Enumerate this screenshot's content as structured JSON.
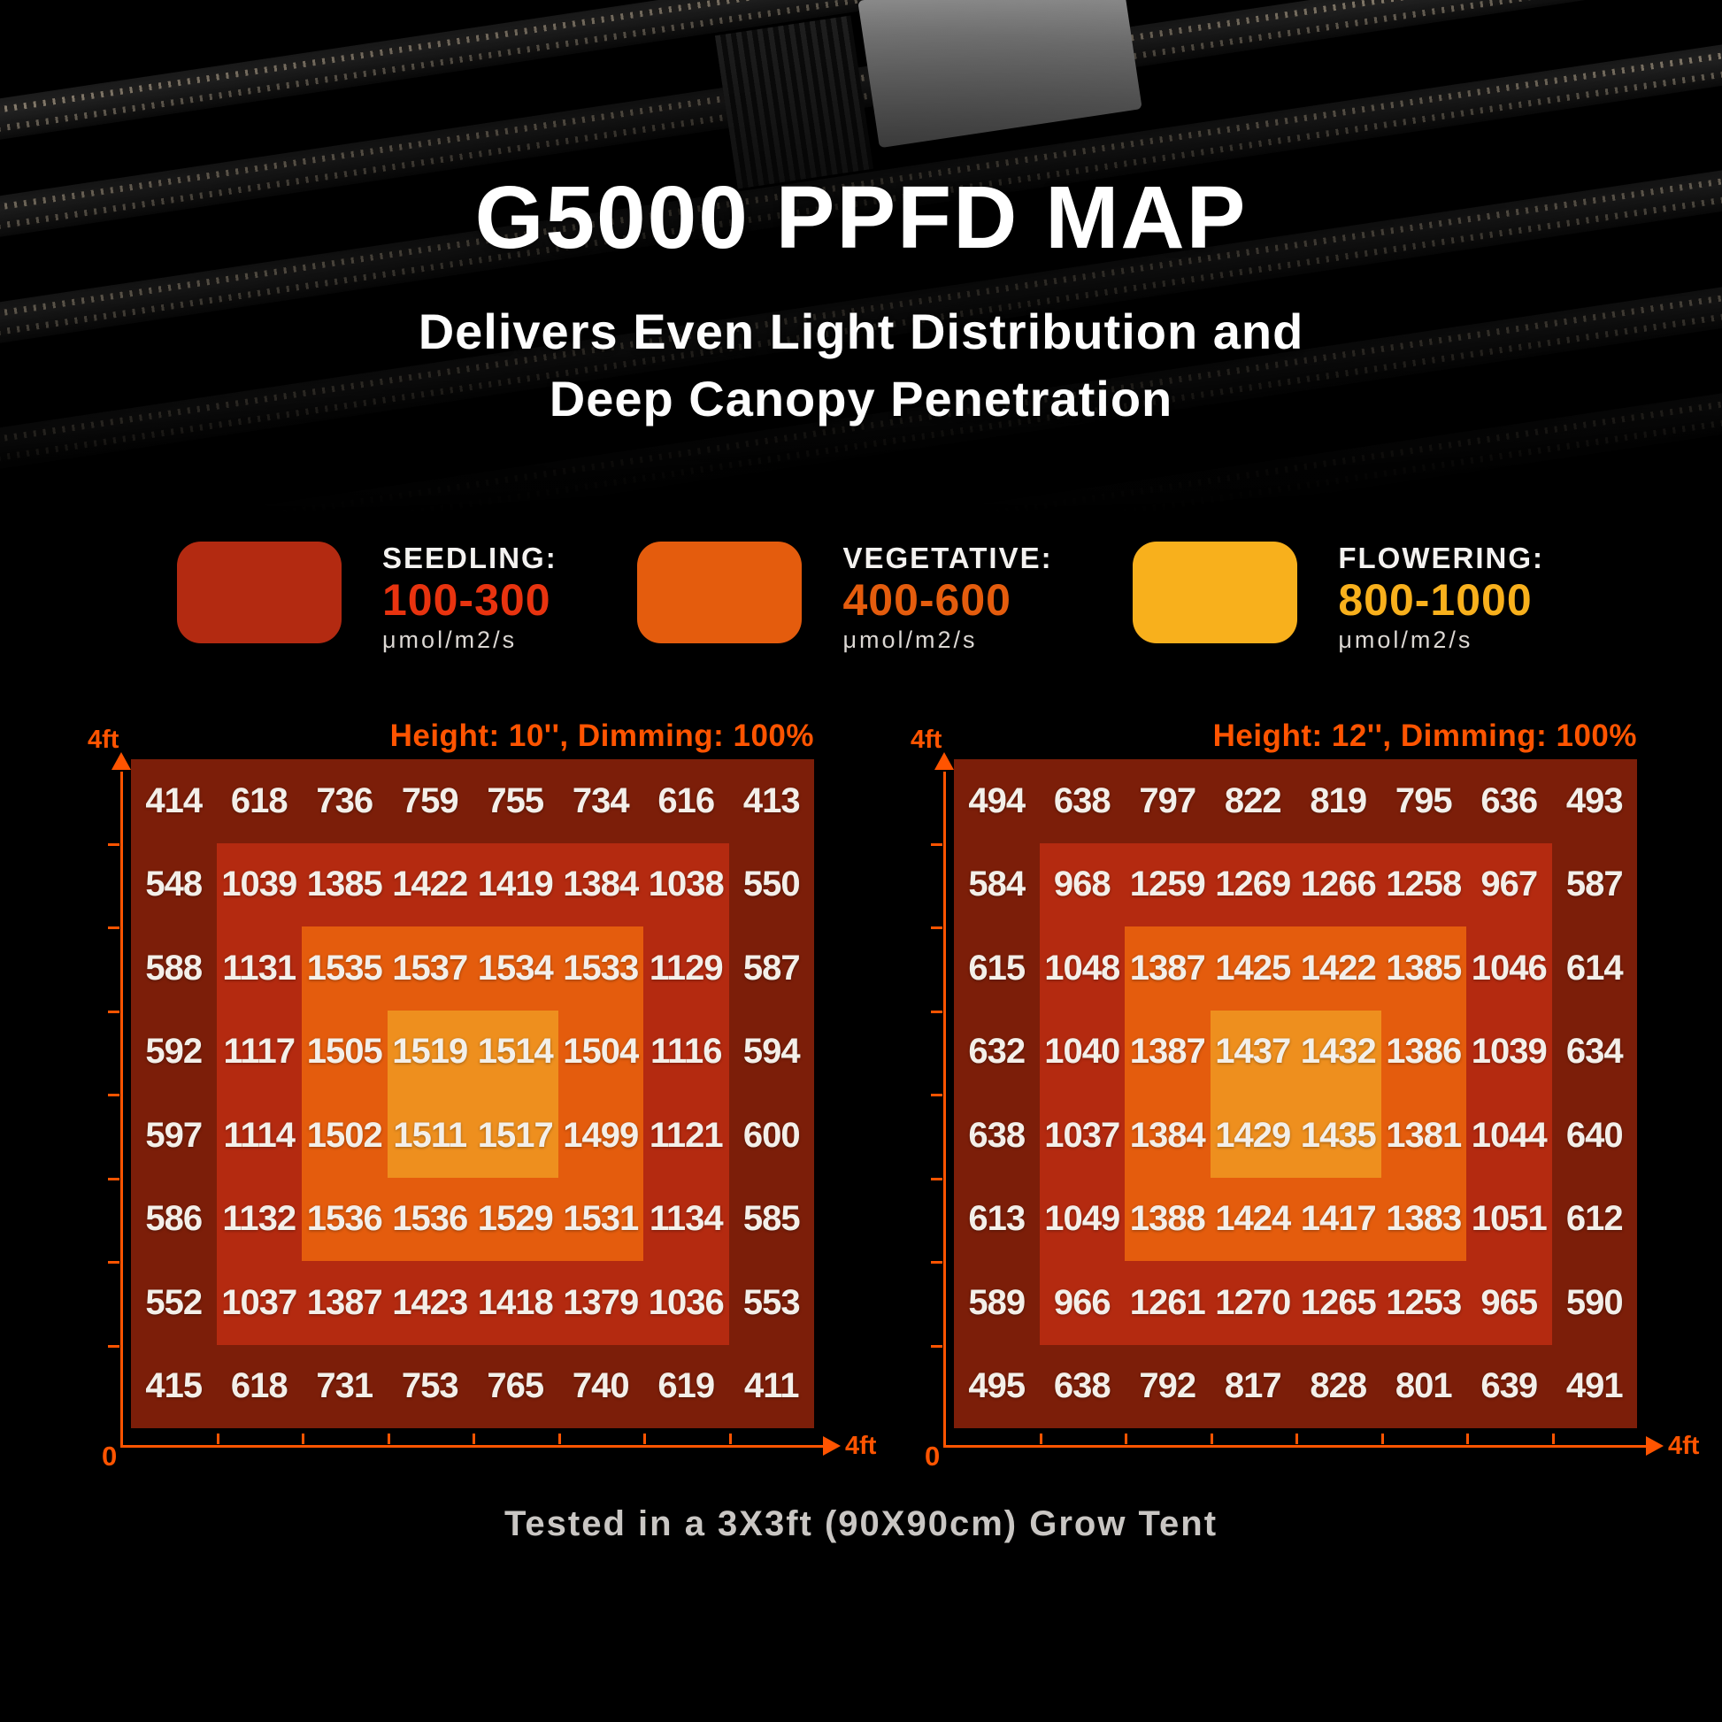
{
  "page": {
    "title": "G5000 PPFD MAP",
    "subtitle_line1": "Delivers Even Light Distribution and",
    "subtitle_line2": "Deep Canopy Penetration",
    "footer_note": "Tested in a 3X3ft (90X90cm) Grow Tent"
  },
  "legend": {
    "items": [
      {
        "label": "SEEDLING:",
        "range": "100-300",
        "unit": "μmol/m2/s",
        "swatch_color": "#b32a11",
        "range_color": "#e8330f"
      },
      {
        "label": "VEGETATIVE:",
        "range": "400-600",
        "unit": "μmol/m2/s",
        "swatch_color": "#e45c0d",
        "range_color": "#e45c0d"
      },
      {
        "label": "FLOWERING:",
        "range": "800-1000",
        "unit": "μmol/m2/s",
        "swatch_color": "#f8b01c",
        "range_color": "#f8b01c"
      }
    ]
  },
  "zones": {
    "outer": "#7c1e09",
    "mid": "#b42a10",
    "inner": "#e45c0d",
    "center": "#ee8f1e"
  },
  "colors": {
    "axis": "#ff5400",
    "header_accent": "#ff5400",
    "value_text": "#f3efe9",
    "footer_text": "#c9c6c3"
  },
  "chart_data": [
    {
      "type": "heatmap",
      "title": "Height: 10'', Dimming: 100%",
      "unit": "μmol/m2/s",
      "grid_size": [
        8,
        8
      ],
      "x_axis": {
        "origin_label": "0",
        "end_label": "4ft",
        "range_ft": [
          0,
          4
        ]
      },
      "y_axis": {
        "end_label": "4ft",
        "range_ft": [
          0,
          4
        ]
      },
      "zone_legend": {
        "outer_values": "~410-760",
        "mid_values": "~1036-1134",
        "inner_values": "~1379-1537",
        "center_values": "~1499-1519"
      },
      "values": [
        [
          414,
          618,
          736,
          759,
          755,
          734,
          616,
          413
        ],
        [
          548,
          1039,
          1385,
          1422,
          1419,
          1384,
          1038,
          550
        ],
        [
          588,
          1131,
          1535,
          1537,
          1534,
          1533,
          1129,
          587
        ],
        [
          592,
          1117,
          1505,
          1519,
          1514,
          1504,
          1116,
          594
        ],
        [
          597,
          1114,
          1502,
          1511,
          1517,
          1499,
          1121,
          600
        ],
        [
          586,
          1132,
          1536,
          1536,
          1529,
          1531,
          1134,
          585
        ],
        [
          552,
          1037,
          1387,
          1423,
          1418,
          1379,
          1036,
          553
        ],
        [
          415,
          618,
          731,
          753,
          765,
          740,
          619,
          411
        ]
      ]
    },
    {
      "type": "heatmap",
      "title": "Height: 12'', Dimming: 100%",
      "unit": "μmol/m2/s",
      "grid_size": [
        8,
        8
      ],
      "x_axis": {
        "origin_label": "0",
        "end_label": "4ft",
        "range_ft": [
          0,
          4
        ]
      },
      "y_axis": {
        "end_label": "4ft",
        "range_ft": [
          0,
          4
        ]
      },
      "zone_legend": {
        "outer_values": "~491-828",
        "mid_values": "~965-1051",
        "inner_values": "~1253-1388",
        "center_values": "~1429-1437"
      },
      "values": [
        [
          494,
          638,
          797,
          822,
          819,
          795,
          636,
          493
        ],
        [
          584,
          968,
          1259,
          1269,
          1266,
          1258,
          967,
          587
        ],
        [
          615,
          1048,
          1387,
          1425,
          1422,
          1385,
          1046,
          614
        ],
        [
          632,
          1040,
          1387,
          1437,
          1432,
          1386,
          1039,
          634
        ],
        [
          638,
          1037,
          1384,
          1429,
          1435,
          1381,
          1044,
          640
        ],
        [
          613,
          1049,
          1388,
          1424,
          1417,
          1383,
          1051,
          612
        ],
        [
          589,
          966,
          1261,
          1270,
          1265,
          1253,
          965,
          590
        ],
        [
          495,
          638,
          792,
          817,
          828,
          801,
          639,
          491
        ]
      ]
    }
  ]
}
